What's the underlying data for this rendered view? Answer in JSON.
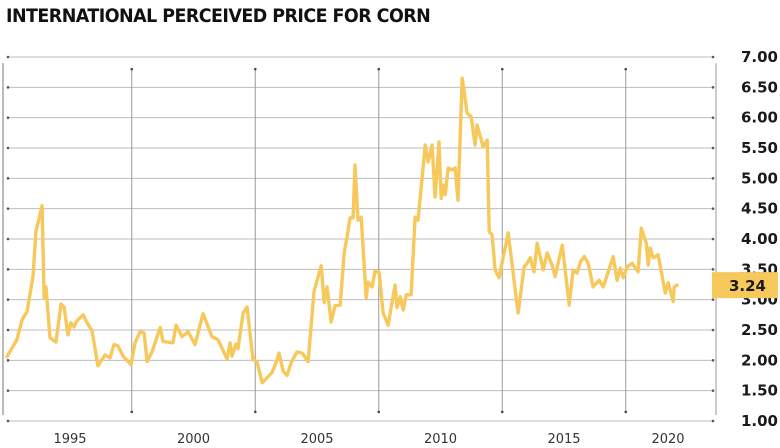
{
  "chart_data": {
    "type": "line",
    "title": "INTERNATIONAL PERCEIVED PRICE FOR CORN",
    "xlabel": "",
    "ylabel": "",
    "xlim": [
      1992.4,
      2019.9
    ],
    "ylim": [
      1.0,
      7.0
    ],
    "y_ticks": [
      "1.00",
      "1.50",
      "2.00",
      "2.50",
      "3.00",
      "3.50",
      "4.00",
      "4.50",
      "5.00",
      "5.50",
      "6.00",
      "6.50",
      "7.00"
    ],
    "x_ticks": [
      1995,
      2000,
      2005,
      2010,
      2015,
      2020
    ],
    "x_tick_labels": [
      "1995",
      "2000",
      "2005",
      "2010",
      "2015",
      "2020"
    ],
    "x_gridlines": [
      1997.5,
      2002.5,
      2007.5,
      2012.5,
      2017.5
    ],
    "grid": true,
    "y_axis_side": "right",
    "line_color": "#F7C95C",
    "highlight": {
      "label": "3.24",
      "value": 3.24,
      "color": "#F7C95C"
    },
    "x": [
      1992.45,
      1992.85,
      1993.06,
      1993.26,
      1993.5,
      1993.62,
      1993.87,
      1993.95,
      1994.03,
      1994.19,
      1994.43,
      1994.64,
      1994.76,
      1994.92,
      1995.04,
      1995.16,
      1995.28,
      1995.53,
      1995.69,
      1995.89,
      1996.13,
      1996.42,
      1996.62,
      1996.78,
      1996.94,
      1997.15,
      1997.47,
      1997.63,
      1997.84,
      1998.0,
      1998.12,
      1998.32,
      1998.65,
      1998.77,
      1999.17,
      1999.29,
      1999.54,
      1999.78,
      2000.06,
      2000.39,
      2000.75,
      2000.99,
      2001.36,
      2001.48,
      2001.56,
      2001.72,
      2001.8,
      2002.01,
      2002.17,
      2002.41,
      2002.57,
      2002.78,
      2003.18,
      2003.34,
      2003.46,
      2003.63,
      2003.79,
      2003.95,
      2004.19,
      2004.4,
      2004.64,
      2004.88,
      2005.17,
      2005.29,
      2005.41,
      2005.57,
      2005.73,
      2005.94,
      2006.1,
      2006.22,
      2006.34,
      2006.46,
      2006.54,
      2006.66,
      2006.79,
      2006.99,
      2007.07,
      2007.23,
      2007.35,
      2007.51,
      2007.68,
      2007.88,
      2008.16,
      2008.24,
      2008.37,
      2008.49,
      2008.61,
      2008.81,
      2008.97,
      2009.09,
      2009.26,
      2009.38,
      2009.5,
      2009.66,
      2009.78,
      2009.94,
      2010.03,
      2010.11,
      2010.19,
      2010.31,
      2010.47,
      2010.59,
      2010.71,
      2010.88,
      2011.08,
      2011.24,
      2011.4,
      2011.48,
      2011.73,
      2011.89,
      2011.97,
      2012.09,
      2012.21,
      2012.37,
      2012.74,
      2013.14,
      2013.39,
      2013.51,
      2013.63,
      2013.79,
      2013.91,
      2014.16,
      2014.32,
      2014.52,
      2014.64,
      2014.93,
      2015.21,
      2015.37,
      2015.53,
      2015.66,
      2015.82,
      2015.98,
      2016.18,
      2016.42,
      2016.59,
      2016.99,
      2017.15,
      2017.28,
      2017.4,
      2017.56,
      2017.76,
      2018.0,
      2018.13,
      2018.33,
      2018.41,
      2018.49,
      2018.61,
      2018.81,
      2019.1,
      2019.22,
      2019.42,
      2019.46,
      2019.58
    ],
    "y": [
      2.06,
      2.34,
      2.67,
      2.8,
      3.38,
      4.12,
      4.55,
      3.03,
      3.21,
      2.37,
      2.3,
      2.93,
      2.88,
      2.42,
      2.62,
      2.55,
      2.65,
      2.75,
      2.62,
      2.49,
      1.91,
      2.09,
      2.04,
      2.26,
      2.24,
      2.07,
      1.93,
      2.29,
      2.47,
      2.45,
      1.98,
      2.14,
      2.54,
      2.31,
      2.29,
      2.58,
      2.39,
      2.47,
      2.26,
      2.77,
      2.39,
      2.34,
      2.02,
      2.29,
      2.07,
      2.27,
      2.19,
      2.78,
      2.88,
      2.01,
      1.98,
      1.63,
      1.8,
      1.96,
      2.12,
      1.82,
      1.75,
      1.96,
      2.14,
      2.12,
      1.98,
      3.13,
      3.56,
      2.95,
      3.21,
      2.63,
      2.9,
      2.91,
      3.77,
      4.04,
      4.35,
      4.35,
      5.22,
      4.31,
      4.36,
      3.03,
      3.29,
      3.21,
      3.47,
      3.46,
      2.78,
      2.58,
      3.24,
      2.87,
      3.05,
      2.83,
      3.08,
      3.08,
      4.36,
      4.31,
      5.02,
      5.55,
      5.27,
      5.55,
      4.69,
      5.6,
      4.67,
      4.89,
      4.73,
      5.17,
      5.14,
      5.17,
      4.64,
      6.65,
      6.07,
      6.02,
      5.55,
      5.88,
      5.52,
      5.63,
      4.12,
      4.07,
      3.49,
      3.36,
      4.1,
      2.78,
      3.54,
      3.6,
      3.69,
      3.46,
      3.93,
      3.49,
      3.77,
      3.57,
      3.38,
      3.9,
      2.91,
      3.49,
      3.44,
      3.62,
      3.71,
      3.6,
      3.21,
      3.32,
      3.21,
      3.71,
      3.32,
      3.52,
      3.36,
      3.54,
      3.6,
      3.46,
      4.18,
      3.93,
      3.57,
      3.85,
      3.69,
      3.74,
      3.11,
      3.28,
      2.97,
      3.21,
      3.24
    ]
  }
}
